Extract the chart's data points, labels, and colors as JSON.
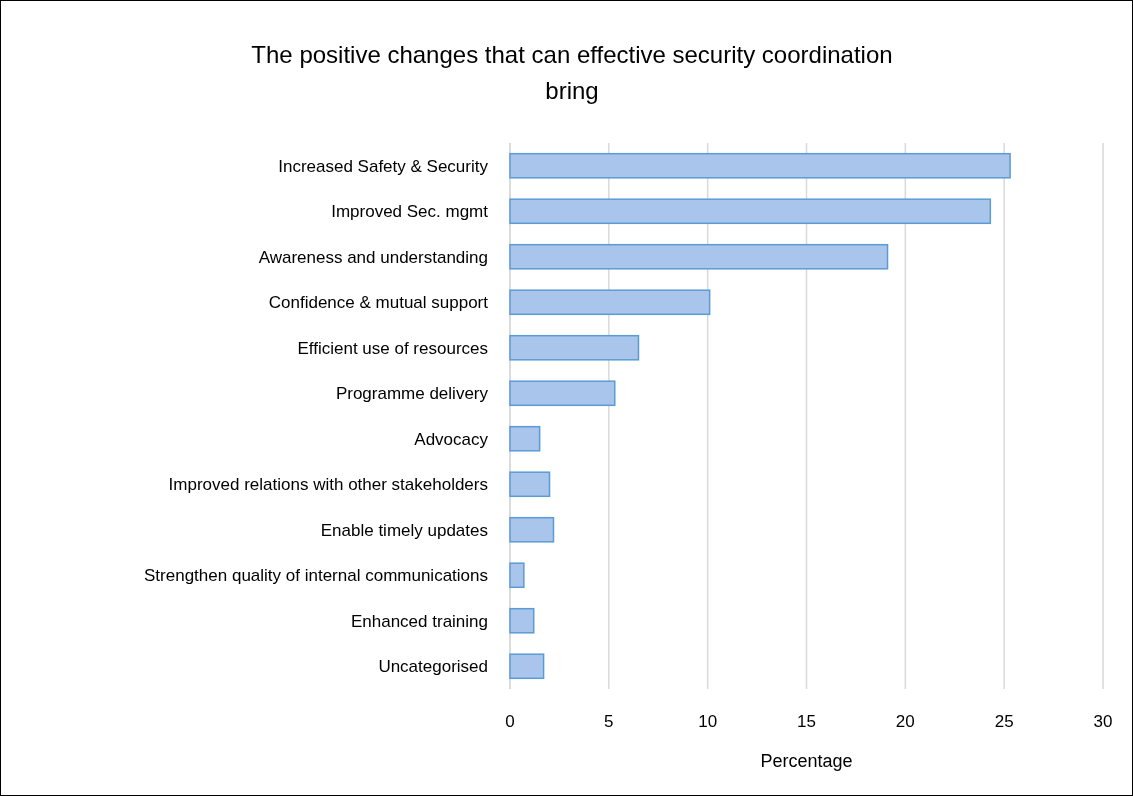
{
  "chart_data": {
    "type": "bar",
    "orientation": "horizontal",
    "title": "The positive changes that can effective security coordination bring",
    "xlabel": "Percentage",
    "categories": [
      "Increased Safety & Security",
      "Improved Sec. mgmt",
      "Awareness and understanding",
      "Confidence & mutual support",
      "Efficient use of resources",
      "Programme delivery",
      "Advocacy",
      "Improved relations with other stakeholders",
      "Enable timely updates",
      "Strengthen quality of internal communications",
      "Enhanced training",
      "Uncategorised"
    ],
    "values": [
      25.3,
      24.3,
      19.1,
      10.1,
      6.5,
      5.3,
      1.5,
      2.0,
      2.2,
      0.7,
      1.2,
      1.7
    ],
    "color": "#a9c5eb",
    "xlim": [
      0,
      30
    ],
    "xticks": [
      0,
      5,
      10,
      15,
      20,
      25,
      30
    ],
    "grid": "x"
  }
}
